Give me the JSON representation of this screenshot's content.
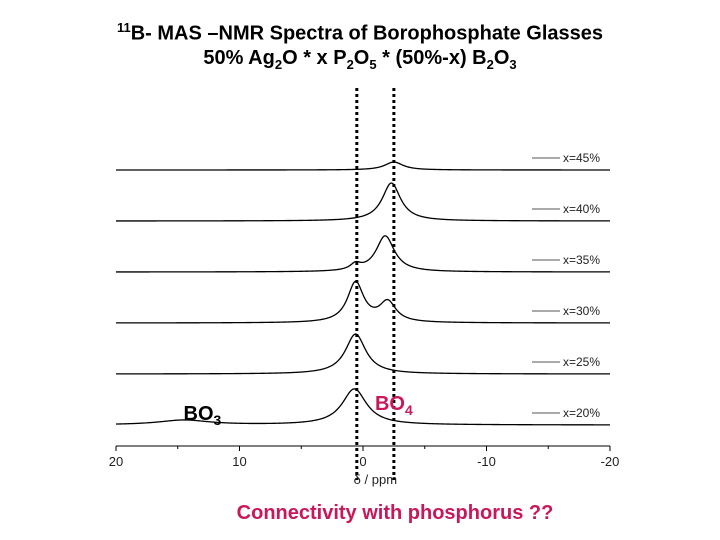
{
  "title": {
    "sup": "11",
    "line1": "B- MAS –NMR Spectra of Borophosphate Glasses",
    "line2_parts": [
      "50% Ag",
      "2",
      "O * x P",
      "2",
      "O",
      "5",
      " * (50%-x) B",
      "2",
      "O",
      "3"
    ]
  },
  "footer": "Connectivity with phosphorus ??",
  "chart_data": {
    "type": "line",
    "xlabel": "δ / ppm",
    "xlim": [
      20,
      -20
    ],
    "xreverse": true,
    "xticks": [
      20,
      10,
      0,
      -10,
      -20
    ],
    "grid": false,
    "legend_position": "right, beside each trace",
    "series": [
      {
        "name": "x=45%",
        "peaks": [
          {
            "center": -2.5,
            "height": 0.2,
            "width": 0.9
          }
        ]
      },
      {
        "name": "x=40%",
        "peaks": [
          {
            "center": -2.3,
            "height": 0.95,
            "width": 0.9
          }
        ]
      },
      {
        "name": "x=35%",
        "peaks": [
          {
            "center": -1.8,
            "height": 0.9,
            "width": 0.9
          },
          {
            "center": 0.6,
            "height": 0.15,
            "width": 0.5
          }
        ]
      },
      {
        "name": "x=30%",
        "peaks": [
          {
            "center": 0.6,
            "height": 1.0,
            "width": 0.8
          },
          {
            "center": -2.0,
            "height": 0.5,
            "width": 0.8
          }
        ]
      },
      {
        "name": "x=25%",
        "peaks": [
          {
            "center": 0.6,
            "height": 1.0,
            "width": 1.0
          }
        ]
      },
      {
        "name": "x=20%",
        "peaks": [
          {
            "center": 0.7,
            "height": 0.9,
            "width": 1.2
          },
          {
            "center": 14.5,
            "height": 0.12,
            "width": 2.5
          }
        ]
      }
    ],
    "annotations": [
      {
        "text": "BO",
        "sub": "3",
        "color": "#000000",
        "x_ppm": 13
      },
      {
        "text": "BO",
        "sub": "4",
        "color": "#c8185a",
        "x_ppm": -2.5
      }
    ],
    "reference_lines_ppm": [
      0.5,
      -2.5
    ]
  }
}
